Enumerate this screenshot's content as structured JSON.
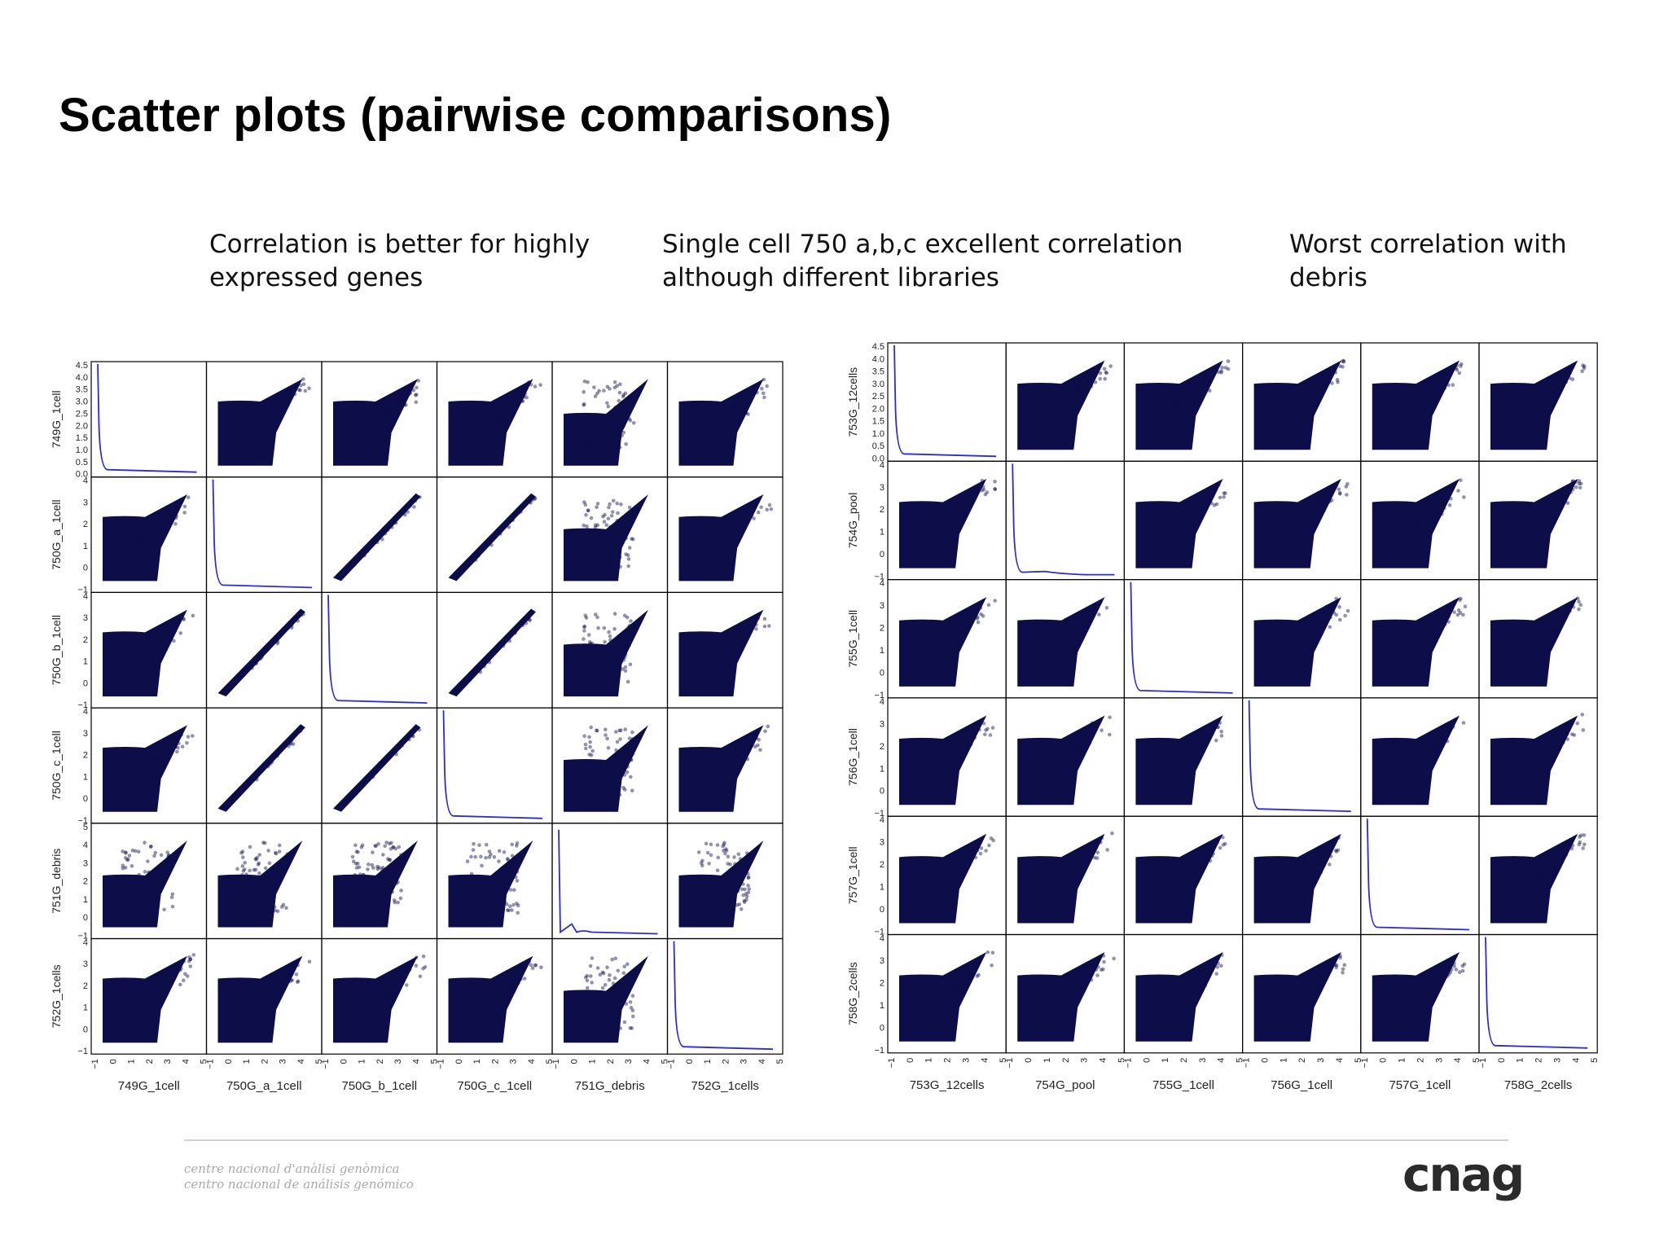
{
  "slide": {
    "title": "Scatter plots (pairwise comparisons)",
    "notes": [
      {
        "line1": "Correlation is better for highly",
        "line2": "expressed genes"
      },
      {
        "line1": "Single cell 750 a,b,c excellent correlation",
        "line2": "although different libraries"
      },
      {
        "line1": "Worst correlation with",
        "line2": "debris"
      }
    ],
    "footer": {
      "line1": "centre nacional d'anàlisi genòmica",
      "line2": "centro nacional de análisis genómico",
      "logo": "cnag"
    }
  },
  "colors": {
    "point": "#0d0d4a",
    "kde_line": "#2b2bd6",
    "axis": "#000000",
    "background": "#ffffff",
    "footer_rule": "#cfcfcf"
  },
  "chart_data": [
    {
      "type": "scatter",
      "subtype": "scatter_matrix",
      "variables": [
        "749G_1cell",
        "750G_a_1cell",
        "750G_b_1cell",
        "750G_c_1cell",
        "751G_debris",
        "752G_1cells"
      ],
      "diagonal": "kde",
      "x_ticks": [
        -1,
        0,
        1,
        2,
        3,
        4,
        5
      ],
      "row_y_ticks": [
        [
          "0.0",
          "0.5",
          "1.0",
          "1.5",
          "2.0",
          "2.5",
          "3.0",
          "3.5",
          "4.0",
          "4.5"
        ],
        [
          "−1",
          "0",
          "1",
          "2",
          "3",
          "4"
        ],
        [
          "−1",
          "0",
          "1",
          "2",
          "3",
          "4"
        ],
        [
          "−1",
          "0",
          "1",
          "2",
          "3",
          "4"
        ],
        [
          "−1",
          "0",
          "1",
          "2",
          "3",
          "4",
          "5"
        ],
        [
          "−1",
          "0",
          "1",
          "2",
          "3",
          "4"
        ]
      ],
      "correlation_pattern": [
        [
          "kde",
          "medium",
          "medium",
          "medium",
          "low",
          "medium"
        ],
        [
          "medium",
          "kde",
          "high",
          "high",
          "low",
          "medium"
        ],
        [
          "medium",
          "high",
          "kde",
          "high",
          "low",
          "medium"
        ],
        [
          "medium",
          "high",
          "high",
          "kde",
          "low",
          "medium"
        ],
        [
          "low",
          "low",
          "low",
          "low",
          "kde",
          "low"
        ],
        [
          "medium",
          "medium",
          "medium",
          "medium",
          "low",
          "kde"
        ]
      ]
    },
    {
      "type": "scatter",
      "subtype": "scatter_matrix",
      "variables": [
        "753G_12cells",
        "754G_pool",
        "755G_1cell",
        "756G_1cell",
        "757G_1cell",
        "758G_2cells"
      ],
      "diagonal": "kde",
      "x_ticks": [
        -1,
        0,
        1,
        2,
        3,
        4,
        5
      ],
      "row_y_ticks": [
        [
          "0.0",
          "0.5",
          "1.0",
          "1.5",
          "2.0",
          "2.5",
          "3.0",
          "3.5",
          "4.0",
          "4.5"
        ],
        [
          "−1",
          "0",
          "1",
          "2",
          "3",
          "4"
        ],
        [
          "−1",
          "0",
          "1",
          "2",
          "3",
          "4"
        ],
        [
          "−1",
          "0",
          "1",
          "2",
          "3",
          "4"
        ],
        [
          "−1",
          "0",
          "1",
          "2",
          "3",
          "4"
        ],
        [
          "−1",
          "0",
          "1",
          "2",
          "3",
          "4"
        ]
      ],
      "correlation_pattern": [
        [
          "kde",
          "medium",
          "medium",
          "medium",
          "medium",
          "medium"
        ],
        [
          "medium",
          "kde",
          "medium",
          "medium",
          "medium",
          "medium"
        ],
        [
          "medium",
          "medium",
          "kde",
          "medium",
          "medium",
          "medium"
        ],
        [
          "medium",
          "medium",
          "medium",
          "kde",
          "medium",
          "medium"
        ],
        [
          "medium",
          "medium",
          "medium",
          "medium",
          "kde",
          "medium"
        ],
        [
          "medium",
          "medium",
          "medium",
          "medium",
          "medium",
          "kde"
        ]
      ]
    }
  ]
}
